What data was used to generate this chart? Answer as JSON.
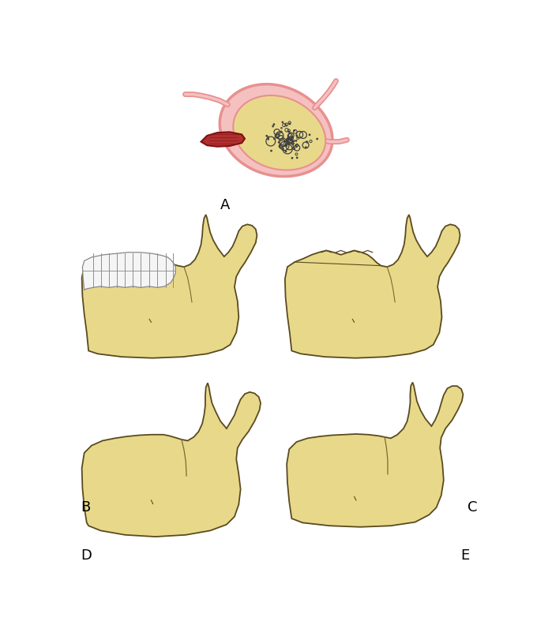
{
  "bg_color": "#ffffff",
  "bone_fill": "#e8d98a",
  "bone_edge": "#5a4a20",
  "bone_edge2": "#7a6a30",
  "tooth_fill": "#f5f5f5",
  "tooth_edge": "#888888",
  "pink_fill": "#f5c0c0",
  "pink_edge": "#d07070",
  "pink_outer": "#e89090",
  "red_fill": "#b03030",
  "red_edge": "#801010",
  "dot_color": "#404040",
  "label_color": "#000000",
  "label_fontsize": 13,
  "label_A": "A",
  "label_B": "B",
  "label_C": "C",
  "label_D": "D",
  "label_E": "E"
}
